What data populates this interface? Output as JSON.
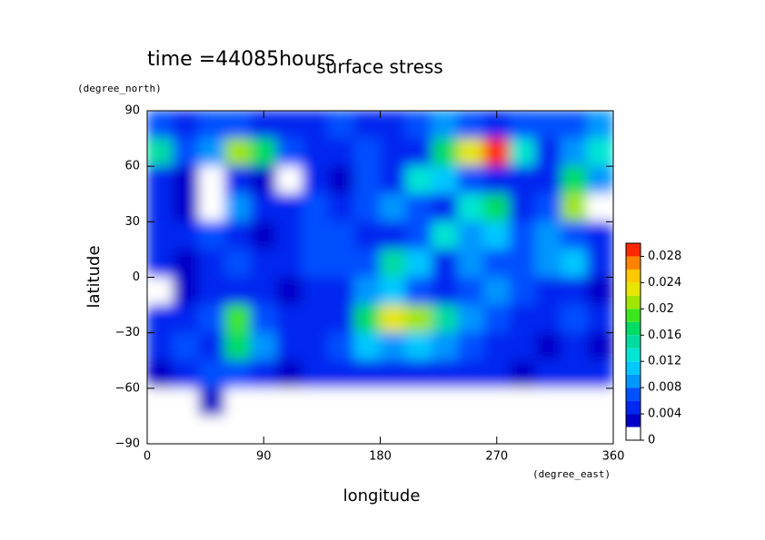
{
  "chart_data": {
    "type": "contour",
    "title": "surface stress",
    "subtitle": "time =44085hours",
    "x_label": "longitude",
    "x_unit": "(degree_east)",
    "y_label": "latitude",
    "y_unit": "(degree_north)",
    "xlim": [
      0,
      360
    ],
    "ylim": [
      -90,
      90
    ],
    "xticks": [
      0,
      90,
      180,
      270,
      360
    ],
    "yticks": [
      90,
      60,
      30,
      0,
      {
        "value": -30,
        "label": "−30"
      },
      {
        "value": -60,
        "label": "−60"
      },
      {
        "value": -90,
        "label": "−90"
      }
    ],
    "x": [
      10,
      30,
      50,
      70,
      90,
      110,
      130,
      150,
      170,
      190,
      210,
      230,
      250,
      270,
      290,
      310,
      330,
      350
    ],
    "y": [
      82.5,
      67.5,
      52.5,
      37.5,
      22.5,
      7.5,
      -7.5,
      -22.5,
      -37.5,
      -52.5,
      -67.5,
      -82.5
    ],
    "z": [
      [
        0.006,
        0.005,
        0.007,
        0.006,
        0.005,
        0.005,
        0.004,
        0.006,
        0.005,
        0.005,
        0.007,
        0.008,
        0.006,
        0.005,
        0.006,
        0.007,
        0.006,
        0.008
      ],
      [
        0.014,
        0.006,
        0.008,
        0.02,
        0.016,
        0.006,
        0.004,
        0.005,
        0.006,
        0.005,
        0.004,
        0.016,
        0.022,
        0.028,
        0.012,
        0.005,
        0.008,
        0.012
      ],
      [
        0.004,
        0.003,
        0.001,
        0.004,
        0.003,
        0.001,
        0.004,
        0.003,
        0.006,
        0.004,
        0.012,
        0.01,
        0.006,
        0.005,
        0.004,
        0.004,
        0.016,
        0.008
      ],
      [
        0.004,
        0.003,
        0.001,
        0.008,
        0.004,
        0.004,
        0.006,
        0.005,
        0.006,
        0.008,
        0.006,
        0.004,
        0.012,
        0.016,
        0.004,
        0.006,
        0.02,
        0.001
      ],
      [
        0.005,
        0.004,
        0.006,
        0.004,
        0.003,
        0.005,
        0.006,
        0.006,
        0.005,
        0.004,
        0.006,
        0.012,
        0.008,
        0.01,
        0.006,
        0.008,
        0.006,
        0.004
      ],
      [
        0.004,
        0.003,
        0.005,
        0.006,
        0.004,
        0.004,
        0.006,
        0.006,
        0.006,
        0.014,
        0.01,
        0.005,
        0.008,
        0.006,
        0.006,
        0.008,
        0.01,
        0.004
      ],
      [
        0.001,
        0.002,
        0.004,
        0.005,
        0.004,
        0.003,
        0.004,
        0.005,
        0.008,
        0.01,
        0.006,
        0.004,
        0.006,
        0.008,
        0.006,
        0.004,
        0.005,
        0.002
      ],
      [
        0.004,
        0.005,
        0.006,
        0.018,
        0.006,
        0.004,
        0.005,
        0.004,
        0.016,
        0.022,
        0.02,
        0.014,
        0.008,
        0.006,
        0.004,
        0.004,
        0.006,
        0.005
      ],
      [
        0.004,
        0.006,
        0.004,
        0.016,
        0.008,
        0.004,
        0.004,
        0.006,
        0.01,
        0.008,
        0.01,
        0.008,
        0.006,
        0.004,
        0.004,
        0.003,
        0.004,
        0.003
      ],
      [
        0.003,
        0.004,
        0.006,
        0.006,
        0.005,
        0.003,
        0.004,
        0.005,
        0.005,
        0.004,
        0.004,
        0.005,
        0.005,
        0.004,
        0.003,
        0.004,
        0.005,
        0.004
      ],
      [
        0.001,
        0.001,
        0.002,
        0.001,
        0.001,
        0.001,
        0.001,
        0.001,
        0.001,
        0.001,
        0.001,
        0.001,
        0.001,
        0.001,
        0.001,
        0.001,
        0.001,
        0.001
      ],
      [
        0.001,
        0.001,
        0.001,
        0.001,
        0.001,
        0.001,
        0.001,
        0.001,
        0.001,
        0.001,
        0.001,
        0.001,
        0.001,
        0.001,
        0.001,
        0.001,
        0.001,
        0.001
      ]
    ],
    "levels": [
      0,
      0.002,
      0.004,
      0.006,
      0.008,
      0.01,
      0.012,
      0.014,
      0.016,
      0.018,
      0.02,
      0.022,
      0.024,
      0.026,
      0.028,
      0.03
    ],
    "colors": [
      "#ffffff",
      "#0000c8",
      "#0028f0",
      "#0050ff",
      "#0096ff",
      "#00c8ff",
      "#00e6d2",
      "#00dca0",
      "#00dc64",
      "#3ce61e",
      "#a0e600",
      "#e6e600",
      "#ffc800",
      "#ff8200",
      "#ff2800"
    ],
    "colorbar_ticks": [
      0,
      0.004,
      0.008,
      0.012,
      0.016,
      0.02,
      0.024,
      0.028
    ]
  }
}
